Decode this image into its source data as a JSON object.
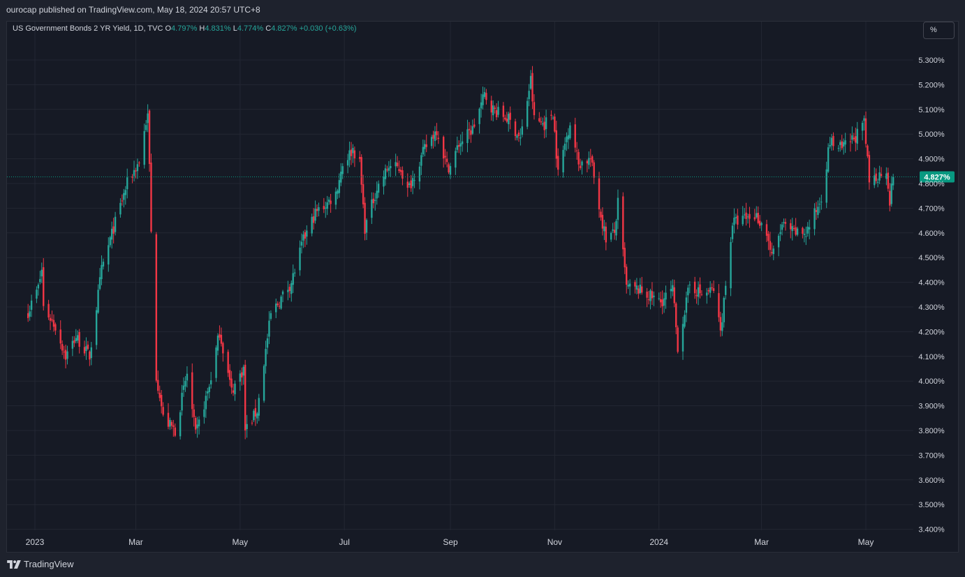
{
  "header": {
    "published": "ourocap published on TradingView.com, May 18, 2024 20:57 UTC+8"
  },
  "legend": {
    "symbol": "US Government Bonds 2 YR Yield, 1D, TVC",
    "o_label": "O",
    "o_value": "4.797%",
    "h_label": "H",
    "h_value": "4.831%",
    "l_label": "L",
    "l_value": "4.774%",
    "c_label": "C",
    "c_value": "4.827%",
    "change": "+0.030 (+0.63%)"
  },
  "unit_button": {
    "label": "%"
  },
  "footer": {
    "brand": "TradingView"
  },
  "colors": {
    "up": "#26a69a",
    "down": "#f23645",
    "price_badge": "#089981",
    "background": "#161a25",
    "grid": "#232733"
  },
  "chart_data": {
    "type": "candlestick",
    "title": "US Government Bonds 2 YR Yield, 1D, TVC",
    "ylabel": "%",
    "ylim": [
      3.36,
      5.36
    ],
    "y_ticks": [
      "5.300%",
      "5.200%",
      "5.100%",
      "5.000%",
      "4.900%",
      "4.800%",
      "4.700%",
      "4.600%",
      "4.500%",
      "4.400%",
      "4.300%",
      "4.200%",
      "4.100%",
      "4.000%",
      "3.900%",
      "3.800%",
      "3.700%",
      "3.600%",
      "3.500%",
      "3.400%"
    ],
    "y_tick_values": [
      5.3,
      5.2,
      5.1,
      5.0,
      4.9,
      4.8,
      4.7,
      4.6,
      4.5,
      4.4,
      4.3,
      4.2,
      4.1,
      4.0,
      3.9,
      3.8,
      3.7,
      3.6,
      3.5,
      3.4
    ],
    "x_ticks": [
      {
        "label": "2023",
        "date": "2023-01-01"
      },
      {
        "label": "Mar",
        "date": "2023-03-01"
      },
      {
        "label": "May",
        "date": "2023-05-01"
      },
      {
        "label": "Jul",
        "date": "2023-07-01"
      },
      {
        "label": "Sep",
        "date": "2023-09-01"
      },
      {
        "label": "Nov",
        "date": "2023-11-01"
      },
      {
        "label": "2024",
        "date": "2024-01-01"
      },
      {
        "label": "Mar",
        "date": "2024-03-01"
      },
      {
        "label": "May",
        "date": "2024-05-01"
      }
    ],
    "last_price": 4.827,
    "last_price_label": "4.827%",
    "start_date": "2022-12-28",
    "end_date": "2024-05-17",
    "close_path": [
      [
        "2022-12-28",
        4.28
      ],
      [
        "2023-01-03",
        4.38
      ],
      [
        "2023-01-05",
        4.45
      ],
      [
        "2023-01-06",
        4.3
      ],
      [
        "2023-01-13",
        4.22
      ],
      [
        "2023-01-19",
        4.1
      ],
      [
        "2023-01-25",
        4.18
      ],
      [
        "2023-02-02",
        4.1
      ],
      [
        "2023-02-09",
        4.45
      ],
      [
        "2023-02-16",
        4.62
      ],
      [
        "2023-02-24",
        4.8
      ],
      [
        "2023-03-03",
        4.89
      ],
      [
        "2023-03-07",
        5.05
      ],
      [
        "2023-03-08",
        5.07
      ],
      [
        "2023-03-09",
        4.87
      ],
      [
        "2023-03-10",
        4.6
      ],
      [
        "2023-03-13",
        4.02
      ],
      [
        "2023-03-15",
        3.95
      ],
      [
        "2023-03-17",
        3.85
      ],
      [
        "2023-03-24",
        3.8
      ],
      [
        "2023-03-31",
        4.03
      ],
      [
        "2023-04-05",
        3.78
      ],
      [
        "2023-04-13",
        3.98
      ],
      [
        "2023-04-19",
        4.2
      ],
      [
        "2023-04-26",
        3.96
      ],
      [
        "2023-05-03",
        4.05
      ],
      [
        "2023-05-04",
        3.8
      ],
      [
        "2023-05-11",
        3.88
      ],
      [
        "2023-05-19",
        4.27
      ],
      [
        "2023-05-31",
        4.4
      ],
      [
        "2023-06-07",
        4.57
      ],
      [
        "2023-06-14",
        4.68
      ],
      [
        "2023-06-21",
        4.72
      ],
      [
        "2023-06-26",
        4.76
      ],
      [
        "2023-06-30",
        4.88
      ],
      [
        "2023-07-06",
        4.94
      ],
      [
        "2023-07-10",
        4.88
      ],
      [
        "2023-07-13",
        4.62
      ],
      [
        "2023-07-20",
        4.78
      ],
      [
        "2023-07-27",
        4.87
      ],
      [
        "2023-08-03",
        4.86
      ],
      [
        "2023-08-07",
        4.77
      ],
      [
        "2023-08-17",
        4.94
      ],
      [
        "2023-08-24",
        5.02
      ],
      [
        "2023-08-30",
        4.87
      ],
      [
        "2023-09-01",
        4.87
      ],
      [
        "2023-09-06",
        4.96
      ],
      [
        "2023-09-14",
        5.02
      ],
      [
        "2023-09-21",
        5.16
      ],
      [
        "2023-09-26",
        5.1
      ],
      [
        "2023-10-05",
        5.06
      ],
      [
        "2023-10-12",
        4.98
      ],
      [
        "2023-10-18",
        5.22
      ],
      [
        "2023-10-20",
        5.06
      ],
      [
        "2023-10-26",
        5.04
      ],
      [
        "2023-10-31",
        5.09
      ],
      [
        "2023-11-03",
        4.84
      ],
      [
        "2023-11-10",
        5.05
      ],
      [
        "2023-11-15",
        4.88
      ],
      [
        "2023-11-22",
        4.9
      ],
      [
        "2023-11-28",
        4.67
      ],
      [
        "2023-12-01",
        4.58
      ],
      [
        "2023-12-06",
        4.6
      ],
      [
        "2023-12-08",
        4.72
      ],
      [
        "2023-12-13",
        4.38
      ],
      [
        "2023-12-20",
        4.37
      ],
      [
        "2024-01-02",
        4.32
      ],
      [
        "2024-01-09",
        4.37
      ],
      [
        "2024-01-12",
        4.14
      ],
      [
        "2024-01-19",
        4.39
      ],
      [
        "2024-01-26",
        4.35
      ],
      [
        "2024-02-02",
        4.37
      ],
      [
        "2024-02-06",
        4.2
      ],
      [
        "2024-02-13",
        4.64
      ],
      [
        "2024-02-21",
        4.66
      ],
      [
        "2024-02-27",
        4.67
      ],
      [
        "2024-03-04",
        4.6
      ],
      [
        "2024-03-07",
        4.5
      ],
      [
        "2024-03-13",
        4.63
      ],
      [
        "2024-03-20",
        4.6
      ],
      [
        "2024-03-27",
        4.6
      ],
      [
        "2024-04-02",
        4.69
      ],
      [
        "2024-04-05",
        4.75
      ],
      [
        "2024-04-10",
        4.97
      ],
      [
        "2024-04-17",
        4.94
      ],
      [
        "2024-04-25",
        4.99
      ],
      [
        "2024-04-30",
        5.04
      ],
      [
        "2024-05-03",
        4.81
      ],
      [
        "2024-05-08",
        4.83
      ],
      [
        "2024-05-13",
        4.86
      ],
      [
        "2024-05-15",
        4.73
      ],
      [
        "2024-05-17",
        4.827
      ]
    ]
  }
}
